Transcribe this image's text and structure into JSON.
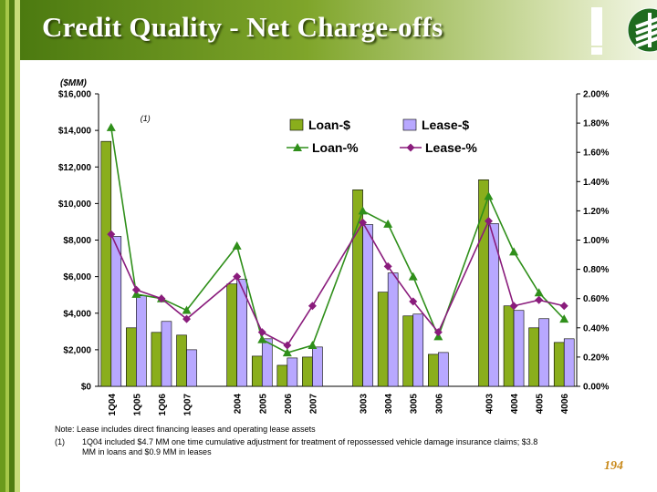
{
  "slide": {
    "title": "Credit Quality - Net Charge-offs",
    "page_number": "194",
    "notes": {
      "note_line": "Note:   Lease includes direct financing leases and operating lease assets",
      "footnote_marker": "(1)",
      "footnote_line1": "1Q04 included $4.7 MM one time cumulative adjustment for treatment of repossessed vehicle damage insurance claims; $3.8",
      "footnote_line2": "MM in loans and $0.9 MM in leases"
    }
  },
  "colors": {
    "header_dark": "#4c7a10",
    "loan_bar": "#8aae1c",
    "lease_bar": "#b8a8ff",
    "loan_line": "#2f8f1a",
    "lease_line": "#8a1c7c",
    "page_number": "#c98a1c"
  },
  "chart_data": {
    "type": "bar",
    "units_label": "($MM)",
    "annotation": "(1)",
    "categories": [
      "1Q04",
      "1Q05",
      "1Q06",
      "1Q07",
      "2004",
      "2005",
      "2006",
      "2007",
      "3003",
      "3004",
      "3005",
      "3006",
      "4003",
      "4004",
      "4005",
      "4006"
    ],
    "groups": [
      4,
      4,
      4,
      4
    ],
    "ylim": [
      0,
      16000
    ],
    "yticks": [
      "$0",
      "$2,000",
      "$4,000",
      "$6,000",
      "$8,000",
      "$10,000",
      "$12,000",
      "$14,000",
      "$16,000"
    ],
    "y2lim": [
      0,
      2.0
    ],
    "y2ticks": [
      "0.00%",
      "0.20%",
      "0.40%",
      "0.60%",
      "0.80%",
      "1.00%",
      "1.20%",
      "1.40%",
      "1.60%",
      "1.80%",
      "2.00%"
    ],
    "legend": {
      "position": "top-right",
      "entries": [
        "Loan-$",
        "Lease-$",
        "Loan-%",
        "Lease-%"
      ]
    },
    "series": [
      {
        "name": "Loan-$",
        "kind": "bar",
        "axis": "left",
        "values": [
          13400,
          3200,
          2950,
          2800,
          5600,
          1650,
          1150,
          1600,
          10750,
          5150,
          3850,
          1750,
          11300,
          4400,
          3200,
          2400
        ]
      },
      {
        "name": "Lease-$",
        "kind": "bar",
        "axis": "left",
        "values": [
          8200,
          4950,
          3550,
          2000,
          5850,
          2600,
          1550,
          2150,
          8850,
          6200,
          3950,
          1850,
          8900,
          4150,
          3700,
          2600
        ]
      },
      {
        "name": "Loan-%",
        "kind": "line",
        "axis": "right",
        "values": [
          1.77,
          0.63,
          0.6,
          0.52,
          0.96,
          0.32,
          0.23,
          0.28,
          1.2,
          1.11,
          0.75,
          0.34,
          1.3,
          0.92,
          0.64,
          0.46
        ]
      },
      {
        "name": "Lease-%",
        "kind": "line",
        "axis": "right",
        "values": [
          1.04,
          0.66,
          0.6,
          0.46,
          0.75,
          0.37,
          0.28,
          0.55,
          1.12,
          0.82,
          0.58,
          0.37,
          1.13,
          0.55,
          0.59,
          0.55
        ]
      }
    ]
  }
}
